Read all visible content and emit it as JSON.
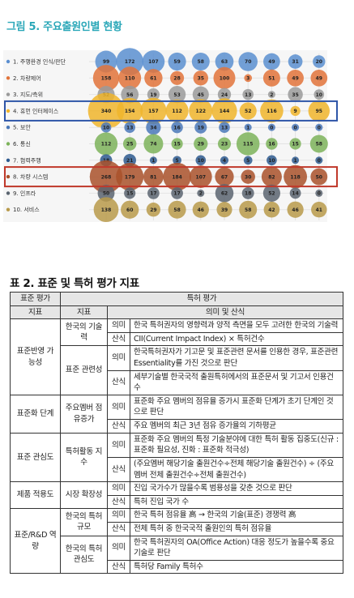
{
  "figure": {
    "title": "그림 5. 주요출원인별 현황",
    "chart_data": {
      "type": "bubble",
      "rows": [
        {
          "label": "1. 주행환경 인식/판단",
          "values": [
            99,
            172,
            107,
            59,
            58,
            63,
            70,
            49,
            31,
            20
          ],
          "color": "#5b8fd0"
        },
        {
          "label": "2. 차량제어",
          "values": [
            158,
            110,
            61,
            28,
            35,
            100,
            3,
            51,
            49,
            49
          ],
          "color": "#e2733a"
        },
        {
          "label": "3. 지도/측위",
          "values": [
            52,
            56,
            19,
            53,
            45,
            24,
            13,
            2,
            35,
            10
          ],
          "color": "#9a9a9a"
        },
        {
          "label": "4. 휴먼 인터페이스",
          "values": [
            340,
            154,
            157,
            112,
            122,
            144,
            52,
            116,
            9,
            95
          ],
          "color": "#f0b52c"
        },
        {
          "label": "5. 보안",
          "values": [
            10,
            13,
            34,
            16,
            19,
            13,
            1,
            0,
            0,
            0
          ],
          "color": "#4a78b8"
        },
        {
          "label": "6. 통신",
          "values": [
            112,
            25,
            74,
            15,
            29,
            23,
            115,
            16,
            15,
            58
          ],
          "color": "#7cb35a"
        },
        {
          "label": "7. 협력주행",
          "values": [
            18,
            21,
            1,
            5,
            10,
            4,
            5,
            10,
            1,
            0
          ],
          "color": "#2e5a8f"
        },
        {
          "label": "8. 차량 시스템",
          "values": [
            268,
            179,
            81,
            184,
            107,
            67,
            30,
            82,
            118,
            50
          ],
          "color": "#a9512a"
        },
        {
          "label": "9. 인프라",
          "values": [
            50,
            15,
            17,
            17,
            2,
            62,
            18,
            52,
            14,
            0
          ],
          "color": "#5a6470"
        },
        {
          "label": "10. 서비스",
          "values": [
            138,
            60,
            29,
            58,
            46,
            39,
            58,
            42,
            46,
            41
          ],
          "color": "#b89a4a"
        }
      ],
      "highlight_rows": [
        {
          "row": "4. 휴먼 인터페이스",
          "color": "#2f56a8"
        },
        {
          "row": "8. 차량 시스템",
          "color": "#c0392b"
        }
      ]
    }
  },
  "table": {
    "title": "표 2. 표준 및 특허 평가 지표",
    "headers": {
      "std_eval": "표준 평가",
      "patent_eval": "특허 평가",
      "std_index": "지표",
      "pat_index": "지표",
      "meaning_calc": "의미 및 산식"
    },
    "labels": {
      "meaning": "의미",
      "formula": "산식"
    },
    "rows": [
      {
        "std": "표준반영 가능성",
        "pat": "한국의 기술력",
        "meaning": "한국 특허권자의 영향력과 양적 측면을 모두 고려한 한국의 기술력",
        "formula": "CII(Current Impact Index) × 특허건수"
      },
      {
        "pat": "표준 관련성",
        "meaning": "한국특허권자가 기고문 및 표준관련 문서를 인용한 경우, 표준관련 Essentiality를 가진 것으로 판단",
        "formula": "세부기술별 한국국적 출원특허에서의 표준문서 및 기고서 인용건수"
      },
      {
        "std": "표준화 단계",
        "pat": "주요멤버 점유증가",
        "meaning": "표준화 주요 멤버의 점유율 증가시 표준화 단계가 초기 단계인 것으로 판단",
        "formula": "주요 멤버의 최근 3년 점유 증가율의 기하평균"
      },
      {
        "std": "표준 관심도",
        "pat": "특허활동 지수",
        "meaning": "표준화 주요 멤버의 특정 기술분야에 대한 특허 활동 집중도(신규 : 표준화 필요성, 진화 : 표준화 적극성)",
        "formula": "(주요멤버 해당기술 출원건수÷전체 해당기술 출원건수) ÷ (주요멤버 전체 출원건수÷전체 출원건수)"
      },
      {
        "std": "제품 적용도",
        "pat": "시장 확장성",
        "meaning": "진입 국가수가 많을수록 범용성을 갖춘 것으로 판단",
        "formula": "특허 진입 국가 수"
      },
      {
        "std": "표준/R&D 역량",
        "pat": "한국의 특허규모",
        "meaning": "한국 특허 점유율 高 → 한국의 기술(표준) 경쟁력 高",
        "formula": "전체 특허 중 한국국적 출원인의 특허 점유율"
      },
      {
        "pat": "한국의 특허관심도",
        "meaning": "한국 특허권자의 OA(Office Action) 대응 정도가 높을수록 중요기술로 판단",
        "formula": "특허당 Family 특허수"
      }
    ]
  }
}
